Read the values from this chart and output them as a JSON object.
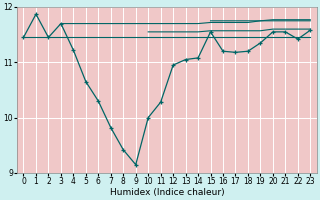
{
  "xlabel": "Humidex (Indice chaleur)",
  "bg_color": "#cff0f0",
  "grid_color": "#f0c8c8",
  "line_color": "#006666",
  "xlim": [
    -0.5,
    23.5
  ],
  "ylim": [
    9,
    12
  ],
  "yticks": [
    9,
    10,
    11,
    12
  ],
  "xticks": [
    0,
    1,
    2,
    3,
    4,
    5,
    6,
    7,
    8,
    9,
    10,
    11,
    12,
    13,
    14,
    15,
    16,
    17,
    18,
    19,
    20,
    21,
    22,
    23
  ],
  "curve_x": [
    0,
    1,
    2,
    3,
    4,
    5,
    6,
    7,
    8,
    9,
    10,
    11,
    12,
    13,
    14,
    15,
    16,
    17,
    18,
    19,
    20,
    21,
    22,
    23
  ],
  "curve_y": [
    11.45,
    11.87,
    11.45,
    11.7,
    11.22,
    10.65,
    10.3,
    9.82,
    9.42,
    9.15,
    10.0,
    10.28,
    10.95,
    11.05,
    11.08,
    11.55,
    11.2,
    11.18,
    11.2,
    11.35,
    11.55,
    11.55,
    11.42,
    11.58
  ],
  "ref_lines": [
    {
      "x": [
        0,
        2,
        3,
        15,
        16,
        23
      ],
      "y": [
        11.45,
        11.45,
        11.45,
        11.45,
        11.45,
        11.45
      ]
    },
    {
      "x": [
        3,
        10,
        11,
        14,
        15,
        18,
        19,
        23
      ],
      "y": [
        11.7,
        11.7,
        11.7,
        11.7,
        11.72,
        11.72,
        11.75,
        11.75
      ]
    },
    {
      "x": [
        10,
        14,
        15,
        19,
        20,
        23
      ],
      "y": [
        11.55,
        11.55,
        11.57,
        11.57,
        11.6,
        11.6
      ]
    },
    {
      "x": [
        15,
        19,
        20,
        23
      ],
      "y": [
        11.75,
        11.75,
        11.77,
        11.77
      ]
    }
  ]
}
